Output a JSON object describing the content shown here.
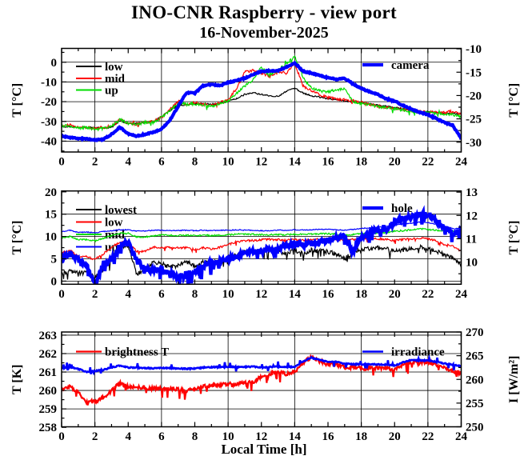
{
  "title": "INO-CNR Raspberry - view port",
  "subtitle": "16-November-2025",
  "xlabel": "Local Time [h]",
  "colors": {
    "black": "#000000",
    "red": "#ff0000",
    "green": "#00dd00",
    "blue": "#0000ff",
    "frame": "#000000",
    "background": "#ffffff"
  },
  "chart_data": [
    {
      "type": "line",
      "left_axis": {
        "label": "T [°C]",
        "range": [
          -45.5,
          7.0
        ],
        "ticks": [
          0,
          -10,
          -20,
          -30,
          -40
        ],
        "minor": 5
      },
      "right_axis": {
        "label": "T [°C]",
        "range": [
          -32.1,
          -9.9
        ],
        "ticks": [
          -10,
          -15,
          -20,
          -25,
          -30
        ],
        "minor": 2.5
      },
      "x_axis": {
        "range": [
          0,
          24
        ],
        "ticks": [
          0,
          2,
          4,
          6,
          8,
          10,
          12,
          14,
          16,
          18,
          20,
          22,
          24
        ],
        "minor_step": 1,
        "grid": [
          2,
          6,
          10,
          14,
          18,
          22
        ]
      },
      "series": [
        {
          "name": "low",
          "color": "#000000",
          "axis": "left",
          "key": "left",
          "width": 1.2,
          "noise": 0.35,
          "x0": 0,
          "dx": 0.5,
          "values": [
            -32.5,
            -32.8,
            -33,
            -33,
            -33.2,
            -33.3,
            -33,
            -29.8,
            -31,
            -31,
            -30.5,
            -30,
            -27.5,
            -24.5,
            -22,
            -21.5,
            -21,
            -21,
            -21.3,
            -20.8,
            -19.7,
            -18.5,
            -16.3,
            -15.5,
            -16.3,
            -17,
            -17.3,
            -14.7,
            -13.2,
            -15.6,
            -17,
            -17.7,
            -18.5,
            -18.8,
            -19.7,
            -20,
            -20.5,
            -21,
            -21.8,
            -22.3,
            -23,
            -23.5,
            -24.2,
            -24.8,
            -25.2,
            -25.4,
            -25.8,
            -26,
            -26.5
          ]
        },
        {
          "name": "mid",
          "color": "#ff0000",
          "axis": "left",
          "key": "left",
          "width": 1.2,
          "noise": 0.7,
          "spike_p": 0.02,
          "spike": 2.2,
          "spike_both": true,
          "x0": 0,
          "dx": 0.5,
          "values": [
            -32,
            -31.8,
            -33,
            -33,
            -33.5,
            -33,
            -32.5,
            -29,
            -31,
            -31.5,
            -30.5,
            -30,
            -28,
            -24,
            -19.5,
            -21.5,
            -20.5,
            -21.5,
            -22,
            -20.5,
            -19,
            -13.5,
            -5,
            -4,
            -5.5,
            -7,
            -5,
            -5.5,
            -0.5,
            -12,
            -14.5,
            -16.5,
            -18,
            -18.5,
            -19,
            -19.5,
            -20.5,
            -21.5,
            -22.3,
            -23,
            -23.3,
            -24,
            -24.5,
            -25,
            -25.3,
            -25.5,
            -25.5,
            -24.8,
            -26.5
          ]
        },
        {
          "name": "up",
          "color": "#00dd00",
          "axis": "left",
          "key": "left",
          "width": 1.2,
          "noise": 0.7,
          "spike_p": 0.02,
          "spike": 2.2,
          "spike_both": true,
          "x0": 0,
          "dx": 0.5,
          "values": [
            -32.5,
            -32,
            -33.5,
            -33,
            -34,
            -33.5,
            -32.5,
            -29,
            -31,
            -31.5,
            -30.5,
            -30.5,
            -28,
            -24.5,
            -20.5,
            -21.5,
            -21,
            -22,
            -22.5,
            -21,
            -19.5,
            -16,
            -12,
            -9,
            -2.5,
            -7,
            -4,
            -1,
            3,
            -8,
            -13,
            -14.5,
            -15,
            -14,
            -13.2,
            -19.8,
            -21,
            -21.5,
            -22.5,
            -23,
            -23.5,
            -24.2,
            -24.8,
            -25.2,
            -25.5,
            -26,
            -26.5,
            -26.5,
            -27.5
          ]
        },
        {
          "name": "camera",
          "color": "#0000ff",
          "axis": "right",
          "key": "right",
          "width": 4.2,
          "noise": 0.12,
          "x0": 0,
          "dx": 0.5,
          "values": [
            -28.7,
            -29,
            -29.2,
            -29.3,
            -29.5,
            -29.4,
            -28.3,
            -26.8,
            -28.2,
            -28.7,
            -28.3,
            -27.9,
            -27.2,
            -25.3,
            -22.3,
            -19.4,
            -19.5,
            -17.9,
            -17.6,
            -17.9,
            -17.2,
            -16.8,
            -16.3,
            -15.5,
            -14.8,
            -14.7,
            -14.7,
            -13.9,
            -13,
            -14.8,
            -15.2,
            -15.7,
            -16.2,
            -16.5,
            -16.3,
            -17.5,
            -18.5,
            -19.2,
            -19.8,
            -20.7,
            -21.2,
            -22.1,
            -22.9,
            -23.6,
            -24.1,
            -24.9,
            -25.8,
            -26.4,
            -29.3
          ]
        }
      ]
    },
    {
      "type": "line",
      "left_axis": {
        "label": "T [°C]",
        "range": [
          -0.7,
          20.2
        ],
        "ticks": [
          20,
          15,
          10,
          5,
          0
        ],
        "minor": 2.5
      },
      "right_axis": {
        "label": "T [°C]",
        "range": [
          9.05,
          13.05
        ],
        "ticks": [
          13,
          12,
          11,
          10
        ],
        "minor": 0.5
      },
      "x_axis": {
        "range": [
          0,
          24
        ],
        "ticks": [
          0,
          2,
          4,
          6,
          8,
          10,
          12,
          14,
          16,
          18,
          20,
          22,
          24
        ],
        "minor_step": 1,
        "grid": [
          2,
          6,
          10,
          14,
          18,
          22
        ]
      },
      "series": [
        {
          "name": "lowest",
          "color": "#000000",
          "axis": "left",
          "key": "left",
          "width": 1.2,
          "noise": 1.0,
          "neg": true,
          "spike_p": 0.05,
          "spike": -1.8,
          "x0": 0,
          "dx": 0.5,
          "values": [
            2,
            2.8,
            2.2,
            2.5,
            1.4,
            3,
            5.4,
            8.1,
            8.4,
            2,
            3,
            4.8,
            4.5,
            3.6,
            4.2,
            4.8,
            3.9,
            4.8,
            4.5,
            5,
            5.7,
            6.3,
            7.1,
            7,
            7.3,
            7.5,
            7.2,
            6.6,
            7.5,
            6.6,
            7.5,
            7.2,
            7.1,
            6.6,
            5.4,
            7.2,
            7.8,
            7.7,
            7.9,
            7.8,
            7.3,
            7.5,
            7.8,
            8.1,
            7.8,
            7.2,
            6.3,
            5.7,
            4
          ]
        },
        {
          "name": "low",
          "color": "#ff0000",
          "axis": "left",
          "key": "left",
          "width": 1.2,
          "noise": 0.45,
          "neg": true,
          "spike_p": 0.03,
          "spike": -1.0,
          "x0": 0,
          "dx": 0.5,
          "values": [
            6.6,
            7.2,
            5.7,
            5.7,
            5.1,
            6.3,
            7.8,
            9,
            9,
            6.9,
            6.9,
            7.8,
            7.8,
            7.7,
            7.7,
            7.7,
            7.3,
            7.7,
            7.4,
            7.8,
            8.4,
            9,
            9.3,
            9.3,
            9.5,
            9.6,
            9.5,
            9.4,
            9.5,
            9.4,
            9.5,
            9.6,
            9.7,
            9.6,
            9.4,
            9.6,
            9.7,
            9.8,
            9.7,
            9.6,
            9.3,
            9.6,
            9.7,
            9.9,
            9.7,
            9.3,
            8.4,
            8.1,
            6.9
          ]
        },
        {
          "name": "mid",
          "color": "#00dd00",
          "axis": "left",
          "key": "left",
          "width": 1.2,
          "noise": 0.18,
          "x0": 0,
          "dx": 0.5,
          "values": [
            9.6,
            10,
            9.3,
            9.3,
            9,
            9.6,
            10.2,
            10.7,
            10.7,
            9.9,
            9.9,
            10.2,
            10.3,
            10.2,
            10.2,
            10.3,
            10.2,
            10.3,
            10.2,
            10.3,
            10.4,
            10.5,
            10.5,
            10.5,
            10.4,
            10.4,
            10.4,
            10.4,
            10.5,
            10.5,
            10.5,
            10.6,
            10.6,
            10.5,
            10.3,
            10.5,
            10.6,
            10.7,
            10.8,
            10.9,
            11.2,
            11.3,
            11.5,
            11.7,
            11.6,
            11.4,
            11.4,
            11.1,
            10.8
          ]
        },
        {
          "name": "up",
          "color": "#0000ff",
          "axis": "left",
          "key": "left",
          "width": 1.2,
          "noise": 0.1,
          "x0": 0,
          "dx": 0.5,
          "values": [
            11.1,
            11.4,
            10.9,
            11,
            10.8,
            11.1,
            11.3,
            11.5,
            11.5,
            11.2,
            11.2,
            11.4,
            11.4,
            11.3,
            11.3,
            11.4,
            11.3,
            11.4,
            11.3,
            11.4,
            11.4,
            11.5,
            11.4,
            11.4,
            11.3,
            11.3,
            11.4,
            11.4,
            11.5,
            11.5,
            11.5,
            11.6,
            11.6,
            11.5,
            11.4,
            11.6,
            11.8,
            11.9,
            12.1,
            12.3,
            12.6,
            12.8,
            13,
            13.2,
            13.1,
            12.8,
            12.3,
            11.8,
            11.7
          ]
        },
        {
          "name": "hole",
          "color": "#0000ff",
          "axis": "right",
          "key": "right",
          "width": 4.2,
          "noise": 0.25,
          "neg": true,
          "spike_p": 0.06,
          "spike": -0.5,
          "x0": 0,
          "dx": 0.5,
          "values": [
            10.27,
            10.5,
            10.2,
            10,
            9.15,
            10.05,
            10.2,
            10.8,
            10.95,
            10.2,
            9.85,
            9.75,
            9.9,
            9.6,
            9.55,
            9.6,
            9.75,
            9.95,
            10.1,
            10.15,
            10.25,
            10.35,
            10.5,
            10.55,
            10.6,
            10.7,
            10.75,
            10.8,
            10.9,
            10.85,
            10.9,
            11,
            11.05,
            11.15,
            11.2,
            10.55,
            11.2,
            11.4,
            11.5,
            11.55,
            11.85,
            11.98,
            12.03,
            12.15,
            12.2,
            11.92,
            11.6,
            11.35,
            11.45
          ]
        }
      ]
    },
    {
      "type": "line",
      "left_axis": {
        "label": "T [K]",
        "range": [
          258.03,
          263.17
        ],
        "ticks": [
          263,
          262,
          261,
          260,
          259,
          258
        ],
        "minor": 0.5
      },
      "right_axis": {
        "label": "I [W/m²]",
        "range": [
          250,
          270
        ],
        "ticks": [
          270,
          265,
          260,
          255,
          250
        ],
        "minor": 2.5
      },
      "x_axis": {
        "range": [
          0,
          24
        ],
        "ticks": [
          0,
          2,
          4,
          6,
          8,
          10,
          12,
          14,
          16,
          18,
          20,
          22,
          24
        ],
        "minor_step": 1,
        "grid": [
          2,
          6,
          10,
          14,
          18,
          22
        ]
      },
      "series": [
        {
          "name": "brightness T",
          "color": "#ff0000",
          "axis": "left",
          "key": "left",
          "width": 2.2,
          "noise": 0.1,
          "spike_p": 0.04,
          "spike": -0.55,
          "x0": 0,
          "dx": 0.5,
          "values": [
            260,
            260.25,
            259.9,
            259.4,
            259.4,
            259.6,
            260,
            260.4,
            260.2,
            260.2,
            260.15,
            260.1,
            260.15,
            260.1,
            260.05,
            260,
            260.05,
            260.2,
            260.3,
            260.3,
            260.35,
            260.35,
            260.4,
            260.45,
            260.75,
            260.9,
            261,
            260.9,
            261,
            261.5,
            261.8,
            261.6,
            261.4,
            261.4,
            261.3,
            261.25,
            261.2,
            261.2,
            261.25,
            261.2,
            261.1,
            261.4,
            261.55,
            261.5,
            261.55,
            261.4,
            261.2,
            261.05,
            260.9
          ]
        },
        {
          "name": "irradiance",
          "color": "#0000ff",
          "axis": "right",
          "key": "right",
          "width": 2.6,
          "noise": 0.12,
          "spike_p": 0.06,
          "spike": 1.1,
          "spike_both": true,
          "x0": 0,
          "dx": 0.5,
          "values": [
            262.3,
            262.6,
            262.2,
            261.6,
            261.8,
            262,
            262.5,
            262.9,
            262.5,
            262.5,
            262.4,
            262.35,
            262.4,
            262.35,
            262.3,
            262.25,
            262.3,
            262.5,
            262.6,
            262.6,
            262.65,
            262.6,
            262.65,
            262.7,
            262.5,
            262.6,
            262.7,
            262.6,
            262.7,
            263.8,
            264.6,
            264.1,
            263.7,
            263.7,
            263.3,
            263.2,
            263.15,
            263.2,
            263.15,
            263.1,
            262.9,
            263.6,
            264.1,
            264,
            264,
            263.7,
            263.35,
            263.1,
            262.8
          ]
        }
      ]
    }
  ]
}
